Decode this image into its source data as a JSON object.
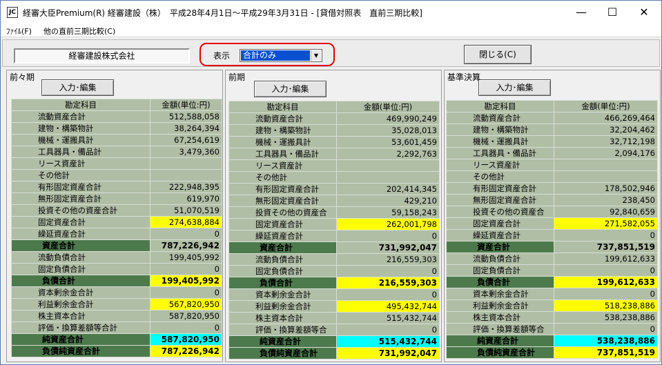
{
  "window": {
    "title": "経審大臣Premium(R)  経審建設（株）　平成28年4月1日～平成29年3月31日 - [貸借対照表　直前三期比較]",
    "icon_text": "JC",
    "controls": {
      "minimize": "—",
      "maximize": "☐",
      "close": "✕"
    }
  },
  "menu": {
    "file": "ﾌｧｲﾙ(F)",
    "other": "他の直前三期比較(C)"
  },
  "toolbar": {
    "company": "経審建設株式会社",
    "display_label": "表示",
    "display_value": "合計のみ",
    "close_button": "閉じる(C)"
  },
  "headers": {
    "account": "勘定科目",
    "amount": "金額(単位:円)"
  },
  "edit_button": "入力･編集",
  "panels": [
    {
      "title": "前々期",
      "rows": [
        {
          "name": "流動資産合計",
          "value": "512,588,058",
          "hl": ""
        },
        {
          "name": "建物・構築物計",
          "value": "38,264,394",
          "hl": ""
        },
        {
          "name": "機械・運搬具計",
          "value": "67,254,619",
          "hl": ""
        },
        {
          "name": "工具器具・備品計",
          "value": "3,479,360",
          "hl": ""
        },
        {
          "name": "リース資産計",
          "value": "",
          "hl": ""
        },
        {
          "name": "その他計",
          "value": "",
          "hl": ""
        },
        {
          "name": "有形固定資産合計",
          "value": "222,948,395",
          "hl": ""
        },
        {
          "name": "無形固定資産合計",
          "value": "619,970",
          "hl": ""
        },
        {
          "name": "投資その他の資産合計",
          "value": "51,070,519",
          "hl": ""
        },
        {
          "name": "固定資産合計",
          "value": "274,638,884",
          "hl": "yellow"
        },
        {
          "name": "繰延資産合計",
          "value": "0",
          "hl": ""
        },
        {
          "name": "資産合計",
          "value": "787,226,942",
          "hl": "total"
        },
        {
          "name": "流動負債合計",
          "value": "199,405,992",
          "hl": ""
        },
        {
          "name": "固定負債合計",
          "value": "0",
          "hl": ""
        },
        {
          "name": "負債合計",
          "value": "199,405,992",
          "hl": "total-yellow"
        },
        {
          "name": "資本剰余金合計",
          "value": "0",
          "hl": ""
        },
        {
          "name": "利益剰余金合計",
          "value": "567,820,950",
          "hl": "yellow"
        },
        {
          "name": "株主資本合計",
          "value": "587,820,950",
          "hl": ""
        },
        {
          "name": "評価・換算差額等合計",
          "value": "0",
          "hl": ""
        },
        {
          "name": "純資産合計",
          "value": "587,820,950",
          "hl": "total-cyan"
        },
        {
          "name": "負債純資産合計",
          "value": "787,226,942",
          "hl": "total-yellow"
        }
      ]
    },
    {
      "title": "前期",
      "rows": [
        {
          "name": "流動資産合計",
          "value": "469,990,249",
          "hl": ""
        },
        {
          "name": "建物・構築物計",
          "value": "35,028,013",
          "hl": ""
        },
        {
          "name": "機械・運搬具計",
          "value": "53,601,459",
          "hl": ""
        },
        {
          "name": "工具器具・備品計",
          "value": "2,292,763",
          "hl": ""
        },
        {
          "name": "リース資産計",
          "value": "",
          "hl": ""
        },
        {
          "name": "その他計",
          "value": "",
          "hl": ""
        },
        {
          "name": "有形固定資産合計",
          "value": "202,414,345",
          "hl": ""
        },
        {
          "name": "無形固定資産合計",
          "value": "429,210",
          "hl": ""
        },
        {
          "name": "投資その他の資産合",
          "value": "59,158,243",
          "hl": ""
        },
        {
          "name": "固定資産合計",
          "value": "262,001,798",
          "hl": "yellow"
        },
        {
          "name": "繰延資産合計",
          "value": "0",
          "hl": ""
        },
        {
          "name": "資産合計",
          "value": "731,992,047",
          "hl": "total"
        },
        {
          "name": "流動負債合計",
          "value": "216,559,303",
          "hl": ""
        },
        {
          "name": "固定負債合計",
          "value": "0",
          "hl": ""
        },
        {
          "name": "負債合計",
          "value": "216,559,303",
          "hl": "total-yellow"
        },
        {
          "name": "資本剰余金合計",
          "value": "0",
          "hl": ""
        },
        {
          "name": "利益剰余金合計",
          "value": "495,432,744",
          "hl": "yellow"
        },
        {
          "name": "株主資本合計",
          "value": "515,432,744",
          "hl": ""
        },
        {
          "name": "評価・換算差額等合",
          "value": "0",
          "hl": ""
        },
        {
          "name": "純資産合計",
          "value": "515,432,744",
          "hl": "total-cyan"
        },
        {
          "name": "負債純資産合計",
          "value": "731,992,047",
          "hl": "total-yellow"
        }
      ]
    },
    {
      "title": "基準決算",
      "rows": [
        {
          "name": "流動資産合計",
          "value": "466,269,464",
          "hl": ""
        },
        {
          "name": "建物・構築物計",
          "value": "32,204,462",
          "hl": ""
        },
        {
          "name": "機械・運搬具計",
          "value": "32,712,198",
          "hl": ""
        },
        {
          "name": "工具器具・備品計",
          "value": "2,094,176",
          "hl": ""
        },
        {
          "name": "リース資産計",
          "value": "",
          "hl": ""
        },
        {
          "name": "その他計",
          "value": "",
          "hl": ""
        },
        {
          "name": "有形固定資産合計",
          "value": "178,502,946",
          "hl": ""
        },
        {
          "name": "無形固定資産合計",
          "value": "238,450",
          "hl": ""
        },
        {
          "name": "投資その他の資産合",
          "value": "92,840,659",
          "hl": ""
        },
        {
          "name": "固定資産合計",
          "value": "271,582,055",
          "hl": "yellow"
        },
        {
          "name": "繰延資産合計",
          "value": "0",
          "hl": ""
        },
        {
          "name": "資産合計",
          "value": "737,851,519",
          "hl": "total"
        },
        {
          "name": "流動負債合計",
          "value": "199,612,633",
          "hl": ""
        },
        {
          "name": "固定負債合計",
          "value": "0",
          "hl": ""
        },
        {
          "name": "負債合計",
          "value": "199,612,633",
          "hl": "total-yellow"
        },
        {
          "name": "資本剰余金合計",
          "value": "0",
          "hl": ""
        },
        {
          "name": "利益剰余金合計",
          "value": "518,238,886",
          "hl": "yellow"
        },
        {
          "name": "株主資本合計",
          "value": "538,238,886",
          "hl": ""
        },
        {
          "name": "評価・換算差額等合",
          "value": "0",
          "hl": ""
        },
        {
          "name": "純資産合計",
          "value": "538,238,886",
          "hl": "total-cyan"
        },
        {
          "name": "負債純資産合計",
          "value": "737,851,519",
          "hl": "total-yellow"
        }
      ]
    }
  ],
  "colors": {
    "cell": "#b0bea6",
    "total_label": "#4d7a4d",
    "highlight_yellow": "#ffff00",
    "highlight_cyan": "#00ffff",
    "focus_outline": "#e60000"
  }
}
